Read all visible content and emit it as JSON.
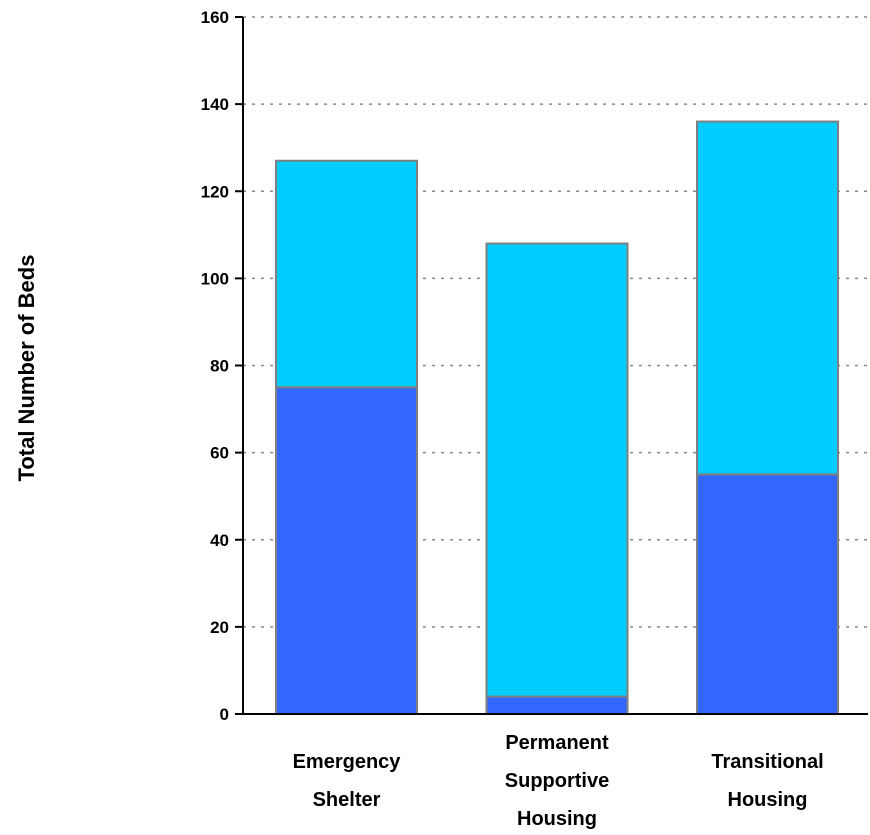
{
  "chart_data": {
    "type": "bar",
    "stacked": true,
    "title": "",
    "xlabel": "",
    "ylabel": "Total Number of Beds",
    "ylim": [
      0,
      160
    ],
    "yticks": [
      0,
      20,
      40,
      60,
      80,
      100,
      120,
      140,
      160
    ],
    "grid": true,
    "categories": [
      [
        "Emergency",
        "Shelter"
      ],
      [
        "Permanent",
        "Supportive",
        "Housing"
      ],
      [
        "Transitional",
        "Housing"
      ]
    ],
    "series": [
      {
        "values": [
          75,
          4,
          55
        ],
        "color": "#3366FF"
      },
      {
        "values": [
          52,
          104,
          81
        ],
        "color": "#00CCFF"
      }
    ],
    "totals": [
      127,
      108,
      136
    ]
  }
}
